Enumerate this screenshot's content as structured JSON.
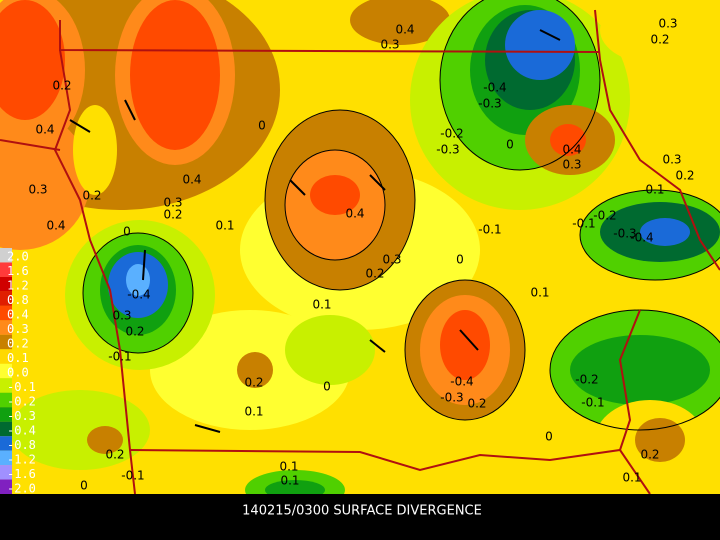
{
  "caption": "140215/0300 SURFACE DIVERGENCE",
  "legend": {
    "labels": [
      "2.0",
      "1.6",
      "1.2",
      "0.8",
      "0.4",
      "0.3",
      "0.2",
      "0.1",
      "0.0",
      "-0.1",
      "-0.2",
      "-0.3",
      "-0.4",
      "-0.8",
      "-1.2",
      "-1.6",
      "-2.0"
    ],
    "colors": [
      "#d0d0d0",
      "#ff3a3a",
      "#d00000",
      "#e01e00",
      "#ff4a00",
      "#ff8a1a",
      "#c88000",
      "#ffd800",
      "#ffff30",
      "#c8f000",
      "#50d000",
      "#10a010",
      "#006a30",
      "#1a6ad8",
      "#5ab0ff",
      "#a090ff",
      "#8020c0"
    ]
  },
  "contour_labels": [
    "0.4",
    "0.3",
    "0.3",
    "0.2",
    "0.2",
    "0.4",
    "-0.4",
    "-0.3",
    "-0.2",
    "-0.3",
    "0",
    "0.4",
    "0.3",
    "0.3",
    "0.2",
    "0.1",
    "0",
    "0.4",
    "0.3",
    "0.2",
    "0.3",
    "0.2",
    "0.4",
    "0.1",
    "0.4",
    "0",
    "-0.1",
    "-0.1",
    "-0.2",
    "-0.3",
    "-0.4",
    "0.3",
    "0.2",
    "0",
    "0.1",
    "0.1",
    "-0.4",
    "0.3",
    "0.2",
    "-0.1",
    "0.2",
    "0.1",
    "0",
    "-0.4",
    "-0.3",
    "0.2",
    "-0.2",
    "-0.1",
    "0",
    "0.2",
    "-0.1",
    "0",
    "0.1",
    "0.1",
    "0.2",
    "0.1"
  ]
}
